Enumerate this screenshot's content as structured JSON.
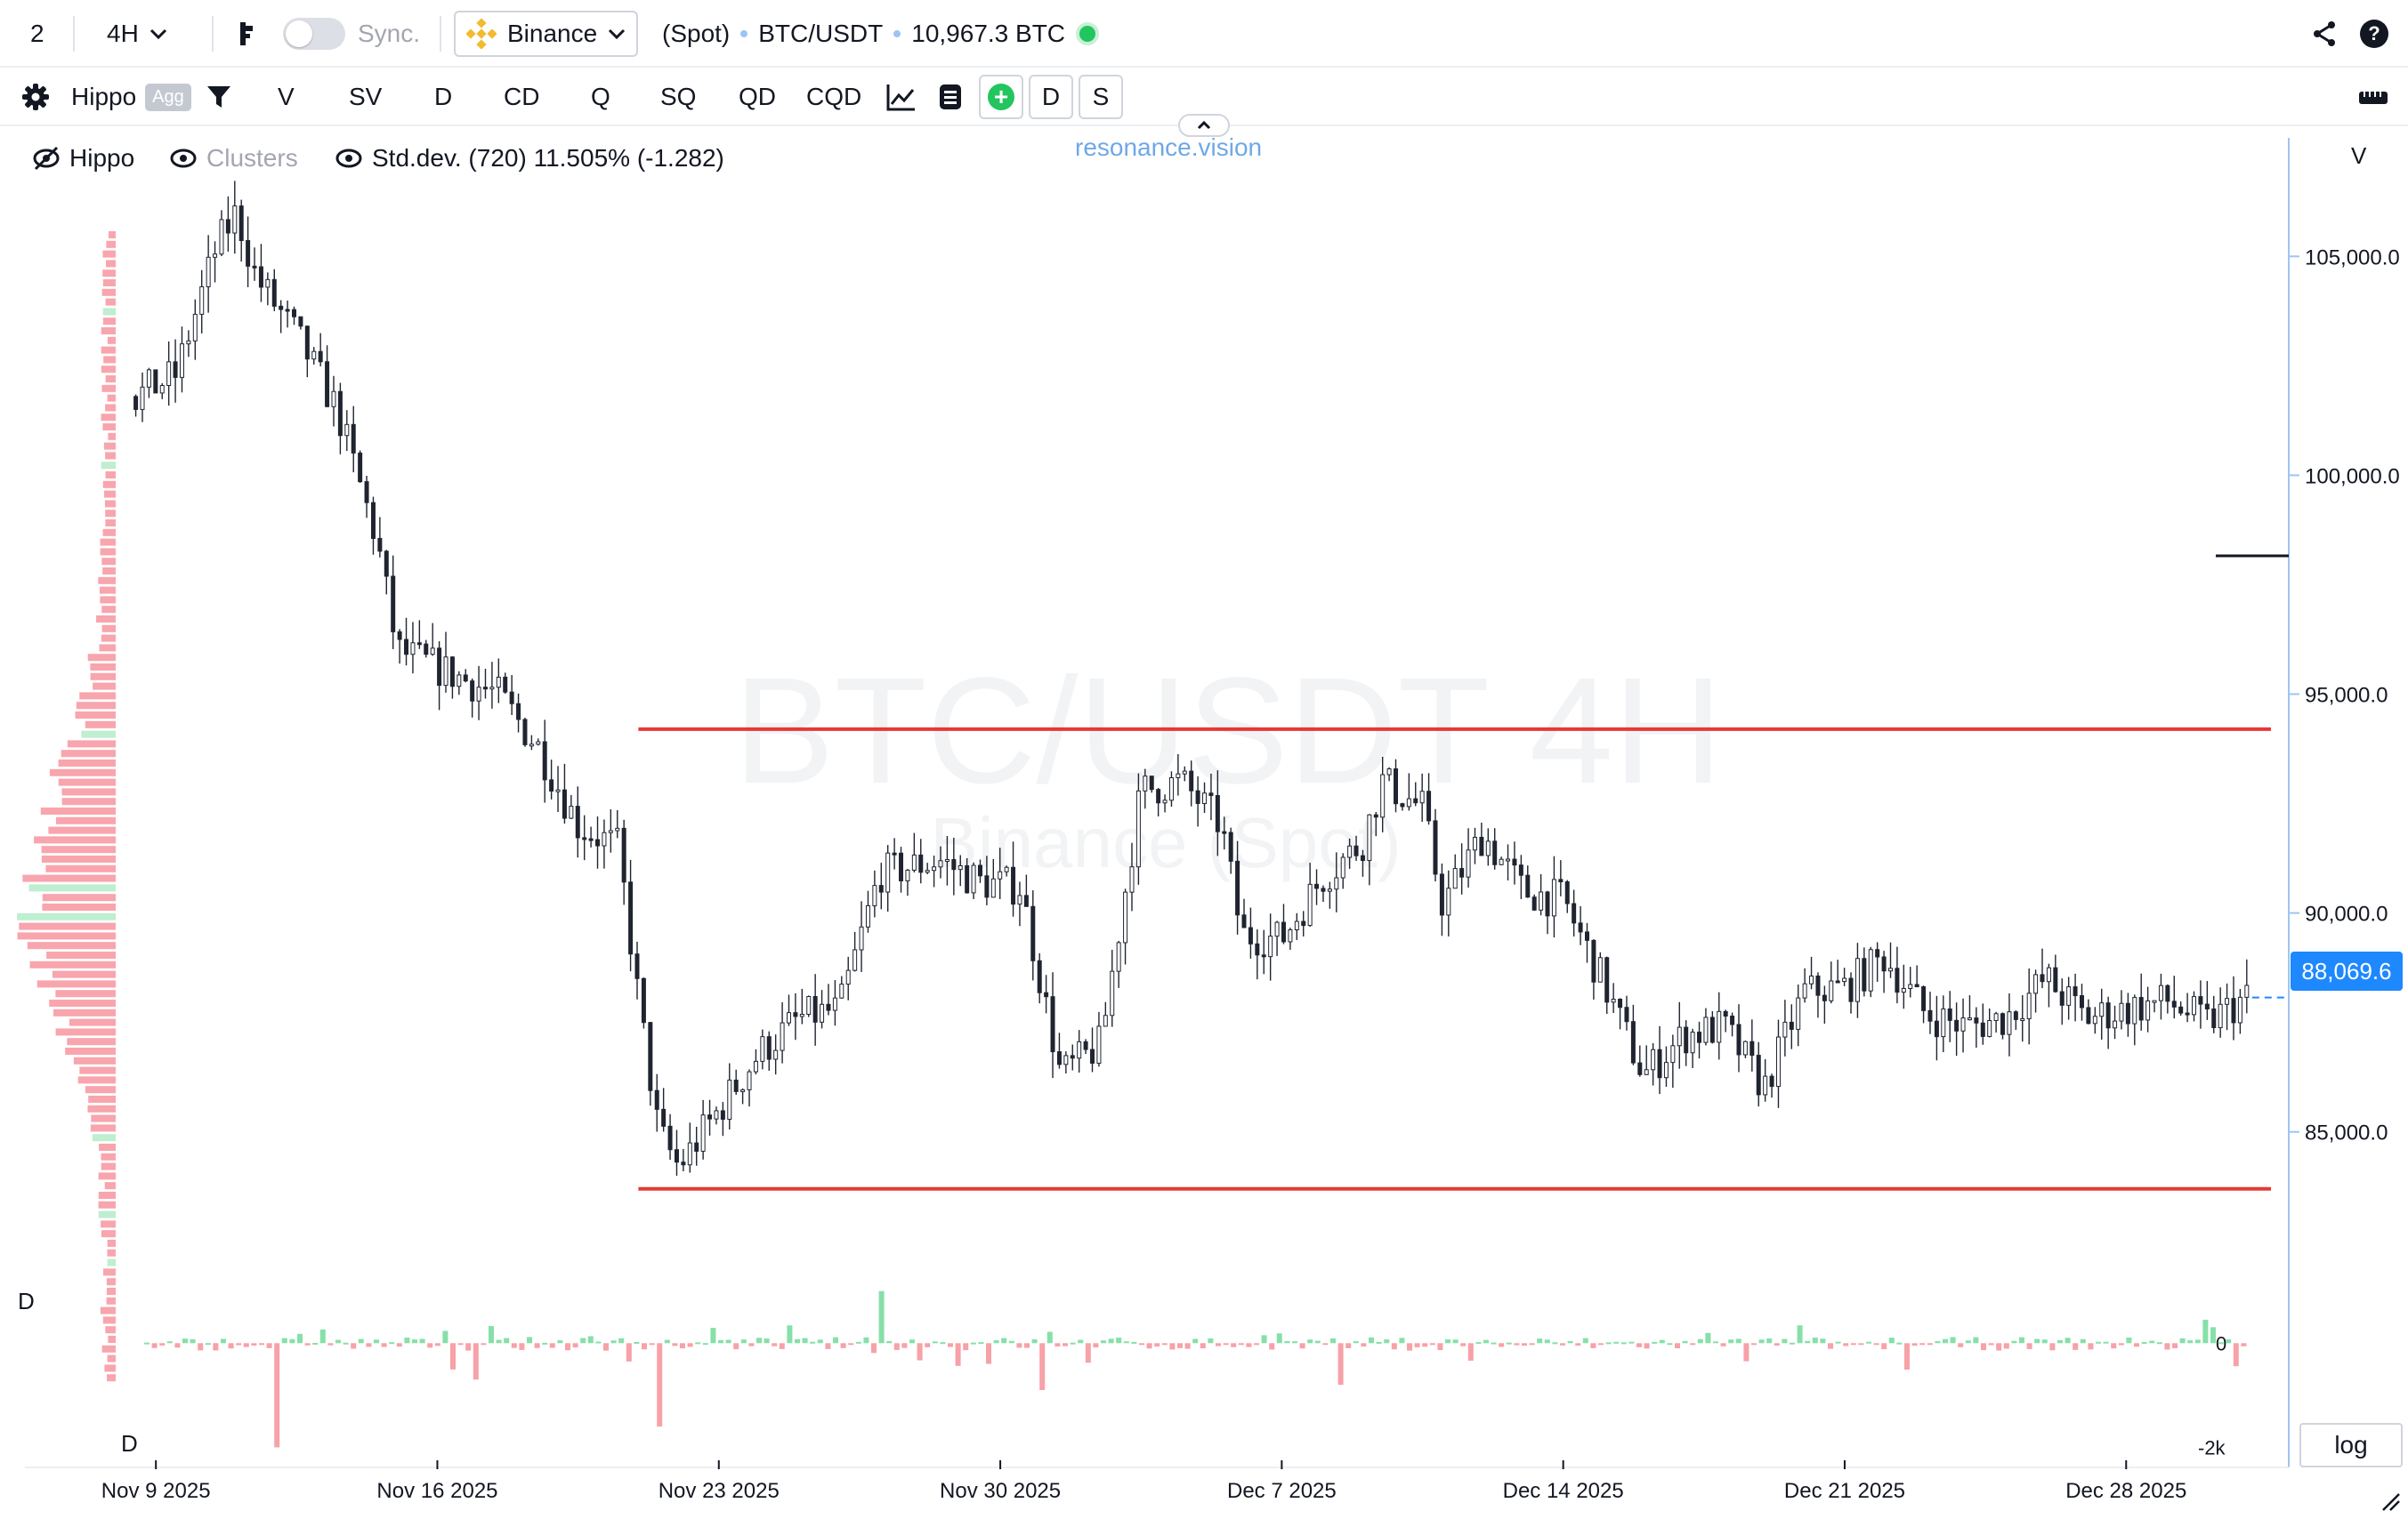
{
  "toolbar": {
    "layout_count": "2",
    "interval": "4H",
    "sync_label": "Sync.",
    "exchange": "Binance",
    "market_type": "(Spot)",
    "symbol": "BTC/USDT",
    "quote_info": "10,967.3 BTC"
  },
  "toolbar2": {
    "indicator_name": "Hippo",
    "agg_badge": "Agg",
    "buttons": [
      "V",
      "SV",
      "D",
      "CD",
      "Q",
      "SQ",
      "QD",
      "CQD"
    ],
    "toggle_d": "D",
    "toggle_s": "S"
  },
  "legend": {
    "hippo": "Hippo",
    "clusters": "Clusters",
    "stddev": "Std.dev. (720) 11.505% (-1.282)"
  },
  "brand": "resonance.vision",
  "watermark": {
    "title": "BTC/USDT 4H",
    "subtitle": "Binance (Spot)"
  },
  "price_axis": {
    "header": "V",
    "labels": [
      "105,000.0",
      "100,000.0",
      "95,000.0",
      "90,000.0",
      "85,000.0"
    ],
    "current_price": "88,069.6"
  },
  "delta_pane": {
    "label_top": "D",
    "label_bottom": "D",
    "axis_labels": [
      "0",
      "-2k"
    ]
  },
  "time_axis": {
    "labels": [
      "Nov 9 2025",
      "Nov 16 2025",
      "Nov 23 2025",
      "Nov 30 2025",
      "Dec 7 2025",
      "Dec 14 2025",
      "Dec 21 2025",
      "Dec 28 2025"
    ]
  },
  "log_label": "log",
  "colors": {
    "candle": "#1f2430",
    "level_line": "#e53935",
    "delta_positive": "#86e0a8",
    "delta_negative": "#f7a1a8",
    "profile": "#f8a5ad",
    "price_tag": "#1e88ff"
  },
  "chart_data": {
    "type": "candlestick",
    "title": "BTC/USDT 4H",
    "subtitle": "Binance (Spot)",
    "interval": "4H",
    "y_axis": {
      "ylim": [
        81500,
        107200
      ],
      "ticks": [
        85000,
        90000,
        95000,
        100000,
        105000
      ],
      "scale": "linear"
    },
    "x_axis": {
      "range": [
        "2025-11-08",
        "2026-01-01"
      ],
      "ticks": [
        "2025-11-09",
        "2025-11-16",
        "2025-11-23",
        "2025-11-30",
        "2025-12-07",
        "2025-12-14",
        "2025-12-21",
        "2025-12-28"
      ]
    },
    "price_path": [
      [
        "2025-11-08T12:00",
        101800
      ],
      [
        "2025-11-09T12:00",
        102300
      ],
      [
        "2025-11-10T12:00",
        105200
      ],
      [
        "2025-11-11T00:00",
        106000
      ],
      [
        "2025-11-11T12:00",
        104500
      ],
      [
        "2025-11-12T12:00",
        103200
      ],
      [
        "2025-11-13T12:00",
        101500
      ],
      [
        "2025-11-14T12:00",
        98500
      ],
      [
        "2025-11-15T00:00",
        96000
      ],
      [
        "2025-11-16T12:00",
        95400
      ],
      [
        "2025-11-17T12:00",
        95000
      ],
      [
        "2025-11-18T12:00",
        93800
      ],
      [
        "2025-11-19T12:00",
        92000
      ],
      [
        "2025-11-20T12:00",
        91500
      ],
      [
        "2025-11-21T00:00",
        88000
      ],
      [
        "2025-11-21T12:00",
        85000
      ],
      [
        "2025-11-22T00:00",
        84200
      ],
      [
        "2025-11-23T00:00",
        85500
      ],
      [
        "2025-11-24T00:00",
        86800
      ],
      [
        "2025-11-25T00:00",
        87600
      ],
      [
        "2025-11-26T00:00",
        87800
      ],
      [
        "2025-11-27T00:00",
        90900
      ],
      [
        "2025-11-28T12:00",
        91200
      ],
      [
        "2025-11-29T12:00",
        90700
      ],
      [
        "2025-11-30T12:00",
        90600
      ],
      [
        "2025-12-01T12:00",
        86300
      ],
      [
        "2025-12-02T12:00",
        87000
      ],
      [
        "2025-12-03T12:00",
        92800
      ],
      [
        "2025-12-04T12:00",
        93000
      ],
      [
        "2025-12-05T12:00",
        92000
      ],
      [
        "2025-12-06T00:00",
        89500
      ],
      [
        "2025-12-07T00:00",
        89400
      ],
      [
        "2025-12-08T00:00",
        90800
      ],
      [
        "2025-12-09T00:00",
        91600
      ],
      [
        "2025-12-09T12:00",
        93000
      ],
      [
        "2025-12-10T12:00",
        92400
      ],
      [
        "2025-12-11T00:00",
        90200
      ],
      [
        "2025-12-12T00:00",
        91800
      ],
      [
        "2025-12-13T00:00",
        90500
      ],
      [
        "2025-12-14T00:00",
        90300
      ],
      [
        "2025-12-15T00:00",
        88400
      ],
      [
        "2025-12-16T00:00",
        86300
      ],
      [
        "2025-12-17T00:00",
        87200
      ],
      [
        "2025-12-18T00:00",
        87400
      ],
      [
        "2025-12-19T00:00",
        86000
      ],
      [
        "2025-12-20T00:00",
        88200
      ],
      [
        "2025-12-21T00:00",
        88300
      ],
      [
        "2025-12-22T00:00",
        89000
      ],
      [
        "2025-12-23T00:00",
        87700
      ],
      [
        "2025-12-24T00:00",
        87400
      ],
      [
        "2025-12-25T00:00",
        87600
      ],
      [
        "2025-12-26T00:00",
        88500
      ],
      [
        "2025-12-27T00:00",
        87600
      ],
      [
        "2025-12-28T00:00",
        87800
      ],
      [
        "2025-12-29T00:00",
        88000
      ],
      [
        "2025-12-30T00:00",
        87500
      ],
      [
        "2025-12-31T00:00",
        88069.6
      ]
    ],
    "levels": [
      {
        "price": 94200,
        "from": "2025-11-21T00:00"
      },
      {
        "price": 83700,
        "from": "2025-11-21T00:00"
      }
    ],
    "last_price": 88069.6,
    "delta_ylim": [
      -2300,
      1200
    ],
    "delta_ticks": [
      0,
      -2000
    ],
    "delta_spikes": [
      [
        "2025-11-12T00:00",
        -2000
      ],
      [
        "2025-11-21T12:00",
        -1600
      ],
      [
        "2025-11-27T00:00",
        1000
      ],
      [
        "2025-11-17T00:00",
        -700
      ],
      [
        "2025-12-01T00:00",
        -900
      ],
      [
        "2025-12-08T12:00",
        -800
      ],
      [
        "2025-12-30T00:00",
        450
      ]
    ]
  }
}
